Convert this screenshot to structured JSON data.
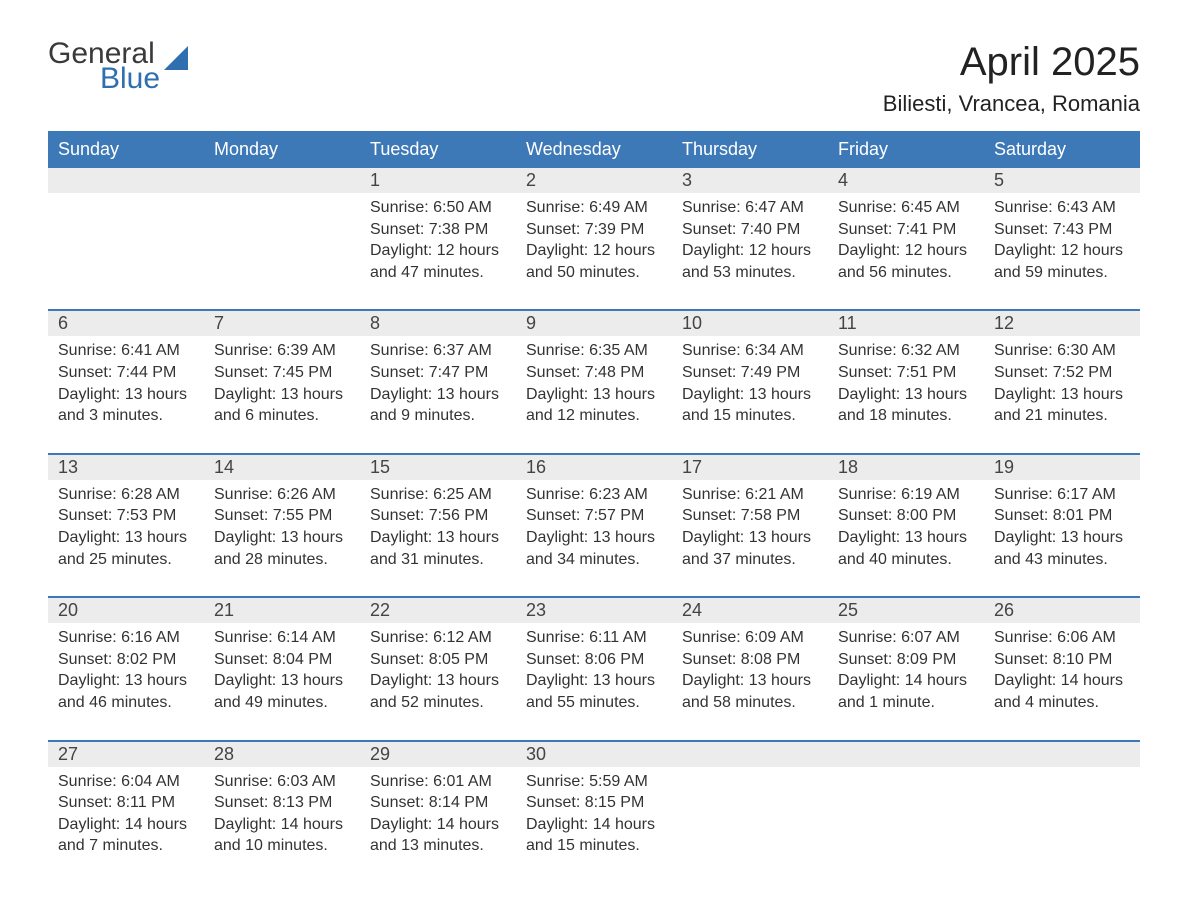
{
  "brand": {
    "word1": "General",
    "word2": "Blue",
    "word1_color": "#3a3a3a",
    "word2_color": "#2f6fb0",
    "icon_color": "#2f6fb0"
  },
  "title": "April 2025",
  "location": "Biliesti, Vrancea, Romania",
  "header_bg": "#3d78b7",
  "header_text_color": "#ffffff",
  "daynum_bg": "#ececec",
  "week_sep_color": "#3d78b7",
  "body_bg": "#ffffff",
  "text_color": "#333333",
  "day_names": [
    "Sunday",
    "Monday",
    "Tuesday",
    "Wednesday",
    "Thursday",
    "Friday",
    "Saturday"
  ],
  "weeks": [
    [
      null,
      null,
      {
        "n": "1",
        "sunrise": "6:50 AM",
        "sunset": "7:38 PM",
        "daylight": "12 hours and 47 minutes."
      },
      {
        "n": "2",
        "sunrise": "6:49 AM",
        "sunset": "7:39 PM",
        "daylight": "12 hours and 50 minutes."
      },
      {
        "n": "3",
        "sunrise": "6:47 AM",
        "sunset": "7:40 PM",
        "daylight": "12 hours and 53 minutes."
      },
      {
        "n": "4",
        "sunrise": "6:45 AM",
        "sunset": "7:41 PM",
        "daylight": "12 hours and 56 minutes."
      },
      {
        "n": "5",
        "sunrise": "6:43 AM",
        "sunset": "7:43 PM",
        "daylight": "12 hours and 59 minutes."
      }
    ],
    [
      {
        "n": "6",
        "sunrise": "6:41 AM",
        "sunset": "7:44 PM",
        "daylight": "13 hours and 3 minutes."
      },
      {
        "n": "7",
        "sunrise": "6:39 AM",
        "sunset": "7:45 PM",
        "daylight": "13 hours and 6 minutes."
      },
      {
        "n": "8",
        "sunrise": "6:37 AM",
        "sunset": "7:47 PM",
        "daylight": "13 hours and 9 minutes."
      },
      {
        "n": "9",
        "sunrise": "6:35 AM",
        "sunset": "7:48 PM",
        "daylight": "13 hours and 12 minutes."
      },
      {
        "n": "10",
        "sunrise": "6:34 AM",
        "sunset": "7:49 PM",
        "daylight": "13 hours and 15 minutes."
      },
      {
        "n": "11",
        "sunrise": "6:32 AM",
        "sunset": "7:51 PM",
        "daylight": "13 hours and 18 minutes."
      },
      {
        "n": "12",
        "sunrise": "6:30 AM",
        "sunset": "7:52 PM",
        "daylight": "13 hours and 21 minutes."
      }
    ],
    [
      {
        "n": "13",
        "sunrise": "6:28 AM",
        "sunset": "7:53 PM",
        "daylight": "13 hours and 25 minutes."
      },
      {
        "n": "14",
        "sunrise": "6:26 AM",
        "sunset": "7:55 PM",
        "daylight": "13 hours and 28 minutes."
      },
      {
        "n": "15",
        "sunrise": "6:25 AM",
        "sunset": "7:56 PM",
        "daylight": "13 hours and 31 minutes."
      },
      {
        "n": "16",
        "sunrise": "6:23 AM",
        "sunset": "7:57 PM",
        "daylight": "13 hours and 34 minutes."
      },
      {
        "n": "17",
        "sunrise": "6:21 AM",
        "sunset": "7:58 PM",
        "daylight": "13 hours and 37 minutes."
      },
      {
        "n": "18",
        "sunrise": "6:19 AM",
        "sunset": "8:00 PM",
        "daylight": "13 hours and 40 minutes."
      },
      {
        "n": "19",
        "sunrise": "6:17 AM",
        "sunset": "8:01 PM",
        "daylight": "13 hours and 43 minutes."
      }
    ],
    [
      {
        "n": "20",
        "sunrise": "6:16 AM",
        "sunset": "8:02 PM",
        "daylight": "13 hours and 46 minutes."
      },
      {
        "n": "21",
        "sunrise": "6:14 AM",
        "sunset": "8:04 PM",
        "daylight": "13 hours and 49 minutes."
      },
      {
        "n": "22",
        "sunrise": "6:12 AM",
        "sunset": "8:05 PM",
        "daylight": "13 hours and 52 minutes."
      },
      {
        "n": "23",
        "sunrise": "6:11 AM",
        "sunset": "8:06 PM",
        "daylight": "13 hours and 55 minutes."
      },
      {
        "n": "24",
        "sunrise": "6:09 AM",
        "sunset": "8:08 PM",
        "daylight": "13 hours and 58 minutes."
      },
      {
        "n": "25",
        "sunrise": "6:07 AM",
        "sunset": "8:09 PM",
        "daylight": "14 hours and 1 minute."
      },
      {
        "n": "26",
        "sunrise": "6:06 AM",
        "sunset": "8:10 PM",
        "daylight": "14 hours and 4 minutes."
      }
    ],
    [
      {
        "n": "27",
        "sunrise": "6:04 AM",
        "sunset": "8:11 PM",
        "daylight": "14 hours and 7 minutes."
      },
      {
        "n": "28",
        "sunrise": "6:03 AM",
        "sunset": "8:13 PM",
        "daylight": "14 hours and 10 minutes."
      },
      {
        "n": "29",
        "sunrise": "6:01 AM",
        "sunset": "8:14 PM",
        "daylight": "14 hours and 13 minutes."
      },
      {
        "n": "30",
        "sunrise": "5:59 AM",
        "sunset": "8:15 PM",
        "daylight": "14 hours and 15 minutes."
      },
      null,
      null,
      null
    ]
  ],
  "labels": {
    "sunrise": "Sunrise:",
    "sunset": "Sunset:",
    "daylight": "Daylight:"
  },
  "fonts": {
    "title_size": 40,
    "location_size": 22,
    "header_size": 18,
    "daynum_size": 18,
    "body_size": 16
  }
}
